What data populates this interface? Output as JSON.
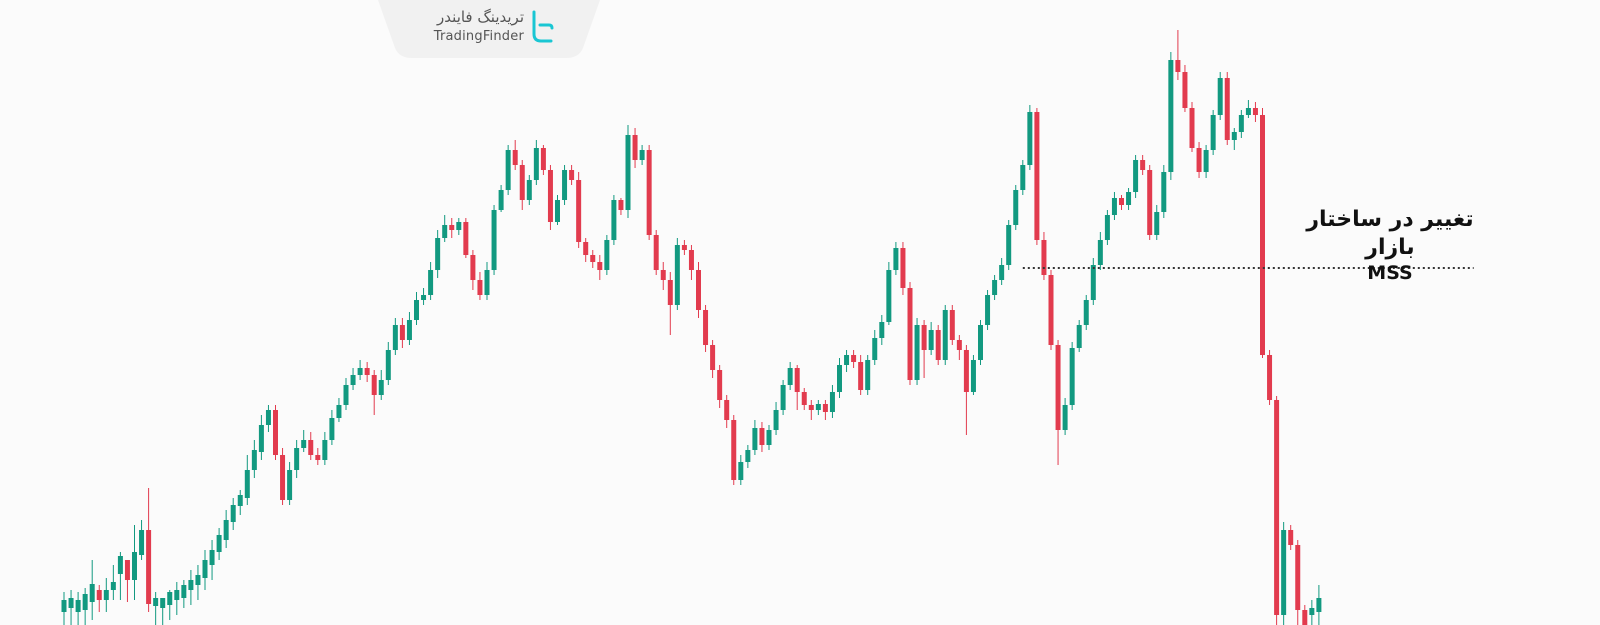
{
  "branding": {
    "logo_fa": "تریدینگ فایندر",
    "logo_en": "TradingFinder",
    "accent_color": "#19c6d3"
  },
  "annotation": {
    "label_fa": "تغییر در ساختار بازار",
    "label_en": "MSS"
  },
  "colors": {
    "bull": "#129980",
    "bear": "#e23b4e",
    "background": "#fbfbfb",
    "level_line": "#333333"
  },
  "chart_data": {
    "type": "candlestick",
    "title": "",
    "xlabel": "",
    "ylabel": "",
    "grid": false,
    "ylim": [
      0,
      625
    ],
    "note_on_values": "Price values are expressed on an inverted relative scale read from the image (no price axis is shown); larger value = lower on chart.",
    "level": {
      "name": "MSS",
      "value": 268,
      "from_candle": 136,
      "to_candle": 173
    },
    "candles": [
      [
        612,
        600,
        629,
        592
      ],
      [
        608,
        598,
        626,
        590
      ],
      [
        612,
        600,
        629,
        592
      ],
      [
        610,
        594,
        625,
        588
      ],
      [
        602,
        584,
        620,
        560
      ],
      [
        590,
        600,
        612,
        585
      ],
      [
        600,
        590,
        612,
        578
      ],
      [
        590,
        582,
        600,
        565
      ],
      [
        574,
        556,
        600,
        552
      ],
      [
        560,
        580,
        602,
        570
      ],
      [
        580,
        552,
        600,
        525
      ],
      [
        555,
        530,
        560,
        520
      ],
      [
        530,
        604,
        612,
        488
      ],
      [
        606,
        598,
        625,
        592
      ],
      [
        608,
        598,
        629,
        600
      ],
      [
        605,
        592,
        620,
        590
      ],
      [
        600,
        590,
        615,
        582
      ],
      [
        598,
        585,
        608,
        580
      ],
      [
        590,
        580,
        605,
        570
      ],
      [
        585,
        575,
        600,
        565
      ],
      [
        578,
        560,
        590,
        550
      ],
      [
        565,
        550,
        580,
        540
      ],
      [
        552,
        535,
        560,
        528
      ],
      [
        540,
        520,
        548,
        510
      ],
      [
        522,
        505,
        530,
        498
      ],
      [
        506,
        495,
        515,
        490
      ],
      [
        498,
        470,
        505,
        455
      ],
      [
        470,
        450,
        478,
        440
      ],
      [
        452,
        425,
        460,
        415
      ],
      [
        425,
        410,
        432,
        405
      ],
      [
        410,
        455,
        460,
        405
      ],
      [
        455,
        500,
        505,
        448
      ],
      [
        500,
        470,
        505,
        462
      ],
      [
        470,
        448,
        478,
        440
      ],
      [
        448,
        440,
        452,
        430
      ],
      [
        440,
        455,
        460,
        432
      ],
      [
        455,
        460,
        465,
        448
      ],
      [
        460,
        440,
        465,
        432
      ],
      [
        440,
        418,
        445,
        410
      ],
      [
        418,
        405,
        422,
        398
      ],
      [
        405,
        385,
        410,
        378
      ],
      [
        385,
        375,
        390,
        368
      ],
      [
        375,
        368,
        380,
        360
      ],
      [
        368,
        375,
        382,
        362
      ],
      [
        375,
        395,
        415,
        370
      ],
      [
        395,
        380,
        400,
        370
      ],
      [
        380,
        350,
        385,
        342
      ],
      [
        350,
        325,
        355,
        318
      ],
      [
        325,
        340,
        348,
        318
      ],
      [
        340,
        320,
        345,
        312
      ],
      [
        320,
        300,
        325,
        292
      ],
      [
        300,
        295,
        305,
        288
      ],
      [
        295,
        270,
        300,
        262
      ],
      [
        270,
        238,
        278,
        230
      ],
      [
        238,
        225,
        242,
        215
      ],
      [
        225,
        230,
        238,
        218
      ],
      [
        230,
        222,
        235,
        218
      ],
      [
        222,
        255,
        258,
        218
      ],
      [
        255,
        280,
        290,
        250
      ],
      [
        280,
        295,
        300,
        272
      ],
      [
        295,
        270,
        300,
        262
      ],
      [
        270,
        210,
        275,
        205
      ],
      [
        210,
        190,
        212,
        185
      ],
      [
        190,
        150,
        195,
        145
      ],
      [
        150,
        165,
        170,
        140
      ],
      [
        165,
        200,
        210,
        160
      ],
      [
        200,
        180,
        205,
        175
      ],
      [
        180,
        148,
        185,
        140
      ],
      [
        148,
        170,
        175,
        145
      ],
      [
        170,
        222,
        230,
        165
      ],
      [
        222,
        200,
        225,
        195
      ],
      [
        200,
        170,
        205,
        165
      ],
      [
        170,
        180,
        185,
        165
      ],
      [
        180,
        242,
        248,
        172
      ],
      [
        242,
        255,
        262,
        238
      ],
      [
        255,
        262,
        268,
        250
      ],
      [
        262,
        270,
        280,
        255
      ],
      [
        270,
        240,
        275,
        235
      ],
      [
        240,
        200,
        245,
        195
      ],
      [
        200,
        210,
        215,
        198
      ],
      [
        210,
        135,
        218,
        125
      ],
      [
        135,
        160,
        168,
        128
      ],
      [
        160,
        150,
        165,
        145
      ],
      [
        150,
        235,
        240,
        145
      ],
      [
        235,
        270,
        275,
        230
      ],
      [
        270,
        280,
        290,
        262
      ],
      [
        280,
        305,
        335,
        272
      ],
      [
        305,
        245,
        310,
        238
      ],
      [
        245,
        250,
        255,
        240
      ],
      [
        250,
        270,
        280,
        245
      ],
      [
        270,
        310,
        318,
        262
      ],
      [
        310,
        345,
        352,
        305
      ],
      [
        345,
        370,
        378,
        340
      ],
      [
        370,
        400,
        408,
        365
      ],
      [
        400,
        420,
        428,
        395
      ],
      [
        420,
        480,
        485,
        415
      ],
      [
        480,
        462,
        485,
        455
      ],
      [
        462,
        450,
        468,
        445
      ],
      [
        450,
        428,
        455,
        420
      ],
      [
        428,
        445,
        452,
        422
      ],
      [
        445,
        430,
        450,
        425
      ],
      [
        430,
        410,
        435,
        402
      ],
      [
        410,
        385,
        415,
        380
      ],
      [
        385,
        368,
        390,
        362
      ],
      [
        368,
        392,
        410,
        365
      ],
      [
        392,
        405,
        410,
        388
      ],
      [
        405,
        410,
        420,
        400
      ],
      [
        410,
        404,
        415,
        400
      ],
      [
        404,
        412,
        420,
        400
      ],
      [
        412,
        392,
        418,
        385
      ],
      [
        392,
        365,
        398,
        358
      ],
      [
        365,
        355,
        372,
        350
      ],
      [
        355,
        362,
        368,
        350
      ],
      [
        362,
        390,
        395,
        355
      ],
      [
        390,
        360,
        395,
        355
      ],
      [
        360,
        338,
        365,
        330
      ],
      [
        338,
        322,
        345,
        315
      ],
      [
        322,
        270,
        325,
        262
      ],
      [
        270,
        248,
        275,
        242
      ],
      [
        248,
        288,
        295,
        242
      ],
      [
        288,
        380,
        385,
        282
      ],
      [
        380,
        325,
        385,
        318
      ],
      [
        325,
        350,
        378,
        320
      ],
      [
        350,
        330,
        355,
        322
      ],
      [
        330,
        360,
        365,
        325
      ],
      [
        360,
        310,
        365,
        305
      ],
      [
        310,
        340,
        345,
        305
      ],
      [
        340,
        350,
        360,
        335
      ],
      [
        350,
        392,
        435,
        345
      ],
      [
        392,
        360,
        395,
        355
      ],
      [
        360,
        325,
        365,
        320
      ],
      [
        325,
        295,
        330,
        290
      ],
      [
        295,
        280,
        300,
        275
      ],
      [
        280,
        265,
        285,
        258
      ],
      [
        265,
        225,
        270,
        220
      ],
      [
        225,
        190,
        230,
        185
      ],
      [
        190,
        165,
        195,
        160
      ],
      [
        165,
        112,
        170,
        105
      ],
      [
        112,
        240,
        245,
        108
      ],
      [
        240,
        275,
        280,
        232
      ],
      [
        275,
        345,
        350,
        270
      ],
      [
        345,
        430,
        465,
        340
      ],
      [
        430,
        405,
        435,
        398
      ],
      [
        405,
        348,
        410,
        342
      ],
      [
        348,
        325,
        352,
        320
      ],
      [
        325,
        300,
        330,
        295
      ],
      [
        300,
        265,
        305,
        258
      ],
      [
        265,
        240,
        270,
        232
      ],
      [
        240,
        215,
        245,
        210
      ],
      [
        215,
        198,
        220,
        192
      ],
      [
        198,
        205,
        210,
        195
      ],
      [
        205,
        192,
        210,
        188
      ],
      [
        192,
        160,
        198,
        155
      ],
      [
        160,
        170,
        175,
        155
      ],
      [
        170,
        235,
        240,
        165
      ],
      [
        235,
        212,
        240,
        205
      ],
      [
        212,
        172,
        218,
        165
      ],
      [
        172,
        60,
        180,
        52
      ],
      [
        60,
        72,
        80,
        30
      ],
      [
        72,
        108,
        112,
        65
      ],
      [
        108,
        148,
        152,
        102
      ],
      [
        148,
        172,
        178,
        142
      ],
      [
        172,
        150,
        178,
        145
      ],
      [
        150,
        115,
        155,
        110
      ],
      [
        115,
        78,
        120,
        72
      ],
      [
        78,
        140,
        145,
        72
      ],
      [
        140,
        132,
        150,
        128
      ],
      [
        132,
        115,
        138,
        110
      ],
      [
        115,
        108,
        118,
        100
      ],
      [
        108,
        115,
        122,
        102
      ],
      [
        115,
        355,
        358,
        108
      ],
      [
        355,
        400,
        405,
        350
      ],
      [
        400,
        615,
        625,
        396
      ],
      [
        615,
        530,
        625,
        522
      ],
      [
        530,
        545,
        550,
        525
      ],
      [
        545,
        610,
        625,
        540
      ],
      [
        610,
        625,
        628,
        605
      ],
      [
        615,
        608,
        625,
        600
      ],
      [
        612,
        598,
        625,
        585
      ]
    ]
  }
}
